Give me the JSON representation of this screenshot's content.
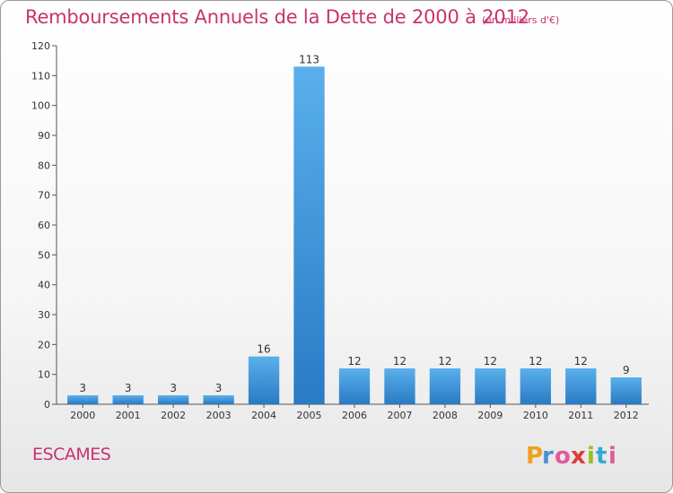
{
  "title": "Remboursements Annuels de la Dette de 2000 à 2012",
  "unit": "(en milliers d'€)",
  "commune": "ESCAMES",
  "logo": {
    "letters": [
      "P",
      "r",
      "o",
      "x",
      "i",
      "t",
      "i"
    ],
    "colors": [
      "#f0a020",
      "#4a90d0",
      "#e05a9a",
      "#e03a3a",
      "#9ac020",
      "#30a8d8",
      "#e05a9a"
    ]
  },
  "colors": {
    "bar": "#3a90d8",
    "accent": "#c8336f"
  },
  "chart_data": {
    "type": "bar",
    "title": "Remboursements Annuels de la Dette de 2000 à 2012",
    "xlabel": "",
    "ylabel": "",
    "categories": [
      "2000",
      "2001",
      "2002",
      "2003",
      "2004",
      "2005",
      "2006",
      "2007",
      "2008",
      "2009",
      "2010",
      "2011",
      "2012"
    ],
    "values": [
      3,
      3,
      3,
      3,
      16,
      113,
      12,
      12,
      12,
      12,
      12,
      12,
      9
    ],
    "ylim": [
      0,
      120
    ],
    "yticks": [
      0,
      10,
      20,
      30,
      40,
      50,
      60,
      70,
      80,
      90,
      100,
      110,
      120
    ],
    "grid": false,
    "legend": "none"
  }
}
